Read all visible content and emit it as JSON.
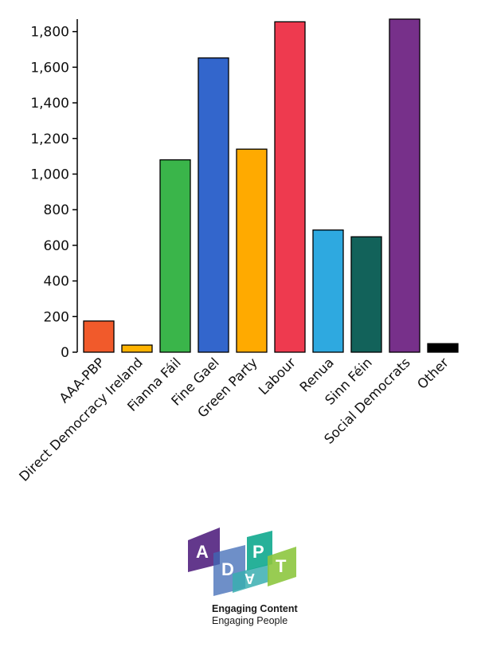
{
  "chart_data": {
    "type": "bar",
    "categories": [
      "AAA-PBP",
      "Direct Democracy Ireland",
      "Fianna Fáil",
      "Fine Gael",
      "Green Party",
      "Labour",
      "Renua",
      "Sinn Féin",
      "Social Democrats",
      "Other"
    ],
    "values": [
      175,
      40,
      1080,
      1652,
      1140,
      1855,
      686,
      648,
      1870,
      48
    ],
    "colors": [
      "#f15a2b",
      "#ffb300",
      "#3ab54a",
      "#3366cc",
      "#ffaa00",
      "#ee3a4f",
      "#2ea9e0",
      "#12625a",
      "#77308a",
      "#000000"
    ],
    "yticks": [
      0,
      200,
      400,
      600,
      800,
      1000,
      1200,
      1400,
      1600,
      1800
    ],
    "ytick_labels": [
      "0",
      "200",
      "400",
      "600",
      "800",
      "1,000",
      "1,200",
      "1,400",
      "1,600",
      "1,800"
    ],
    "ylim": [
      0,
      1870
    ],
    "grid": false,
    "legend": "none"
  },
  "branding": {
    "logo_letters": [
      "A",
      "D",
      "P",
      "A",
      "T"
    ],
    "line1": "Engaging Content",
    "line2": "Engaging People"
  }
}
